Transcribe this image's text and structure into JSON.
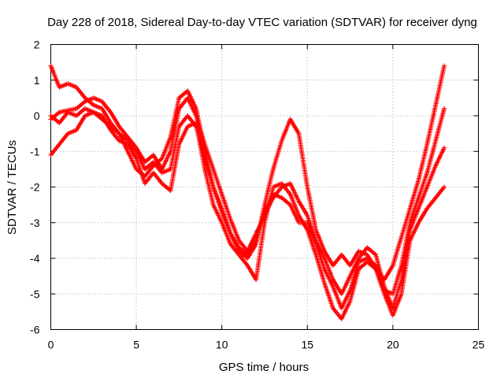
{
  "chart_data": {
    "type": "scatter",
    "title": "Day 228 of 2018, Sidereal Day-to-day VTEC variation (SDTVAR) for receiver dyng",
    "xlabel": "GPS time / hours",
    "ylabel": "SDTVAR / TECUs",
    "xlim": [
      0,
      25
    ],
    "ylim": [
      -6,
      2
    ],
    "xticks": [
      "0",
      "5",
      "10",
      "15",
      "20",
      "25"
    ],
    "yticks": [
      "-6",
      "-5",
      "-4",
      "-3",
      "-2",
      "-1",
      "0",
      "1",
      "2"
    ],
    "grid": true,
    "marker": "+",
    "color": "#ff0000",
    "series": [
      {
        "x": [
          0.0,
          0.5,
          1.0,
          1.5,
          2.0,
          2.5,
          3.0,
          3.5,
          4.0,
          4.5,
          5.0,
          5.5,
          6.0,
          6.5,
          7.0,
          7.5,
          8.0,
          8.5,
          9.0,
          9.5,
          10.0,
          10.5,
          11.0,
          11.5,
          12.0,
          12.5,
          13.0,
          13.5,
          14.0,
          14.5,
          15.0,
          15.5,
          16.0,
          16.5,
          17.0,
          17.5,
          18.0,
          18.5,
          19.0,
          19.5,
          20.0,
          20.5,
          21.0,
          21.5,
          22.0,
          22.5,
          23.0
        ],
        "y": [
          1.4,
          0.8,
          0.9,
          0.8,
          0.5,
          0.3,
          0.2,
          -0.2,
          -0.5,
          -1.0,
          -1.5,
          -1.7,
          -1.4,
          -1.2,
          -0.6,
          0.5,
          0.7,
          0.2,
          -1.0,
          -2.0,
          -2.6,
          -3.3,
          -3.8,
          -4.0,
          -3.6,
          -2.5,
          -1.5,
          -0.7,
          -0.1,
          -0.5,
          -2.0,
          -3.2,
          -3.8,
          -4.2,
          -3.9,
          -4.2,
          -3.8,
          -3.9,
          -4.3,
          -4.6,
          -4.2,
          -3.4,
          -2.6,
          -1.8,
          -0.8,
          0.3,
          1.4
        ]
      },
      {
        "x": [
          0.0,
          0.5,
          1.0,
          1.5,
          2.0,
          2.5,
          3.0,
          3.5,
          4.0,
          4.5,
          5.0,
          5.5,
          6.0,
          6.5,
          7.0,
          7.5,
          8.0,
          8.5,
          9.0,
          9.5,
          10.0,
          10.5,
          11.0,
          11.5,
          12.0,
          12.5,
          13.0,
          13.5,
          14.0,
          14.5,
          15.0,
          15.5,
          16.0,
          16.5,
          17.0,
          17.5,
          18.0,
          18.5,
          19.0,
          19.5,
          20.0,
          20.5,
          21.0,
          21.5,
          22.0,
          22.5,
          23.0
        ],
        "y": [
          -0.1,
          0.1,
          0.15,
          0.2,
          0.4,
          0.5,
          0.4,
          0.1,
          -0.3,
          -0.6,
          -0.9,
          -1.3,
          -1.1,
          -1.5,
          -1.0,
          0.2,
          0.5,
          0.0,
          -0.8,
          -1.5,
          -2.2,
          -2.9,
          -3.5,
          -3.8,
          -3.3,
          -2.8,
          -2.3,
          -2.0,
          -1.9,
          -2.4,
          -2.8,
          -3.5,
          -4.0,
          -4.6,
          -5.0,
          -4.5,
          -4.0,
          -3.7,
          -3.9,
          -4.8,
          -5.4,
          -4.6,
          -3.2,
          -2.6,
          -2.0,
          -1.4,
          -0.9
        ]
      },
      {
        "x": [
          0.0,
          0.5,
          1.0,
          1.5,
          2.0,
          2.5,
          3.0,
          3.5,
          4.0,
          4.5,
          5.0,
          5.5,
          6.0,
          6.5,
          7.0,
          7.5,
          8.0,
          8.5,
          9.0,
          9.5,
          10.0,
          10.5,
          11.0,
          11.5,
          12.0,
          12.5,
          13.0,
          13.5,
          14.0,
          14.5,
          15.0,
          15.5,
          16.0,
          16.5,
          17.0,
          17.5,
          18.0,
          18.5,
          19.0,
          19.5,
          20.0,
          20.5,
          21.0,
          21.5,
          22.0,
          22.5,
          23.0
        ],
        "y": [
          -1.1,
          -0.8,
          -0.5,
          -0.4,
          0.0,
          0.1,
          0.0,
          -0.4,
          -0.7,
          -0.8,
          -1.2,
          -1.9,
          -1.6,
          -1.9,
          -2.1,
          -0.8,
          -0.3,
          -0.2,
          -1.5,
          -2.5,
          -3.0,
          -3.6,
          -3.9,
          -4.2,
          -4.6,
          -3.0,
          -2.0,
          -1.9,
          -2.2,
          -2.8,
          -3.2,
          -3.9,
          -4.7,
          -5.4,
          -5.7,
          -5.2,
          -4.3,
          -4.1,
          -4.3,
          -5.0,
          -5.6,
          -5.0,
          -3.5,
          -3.0,
          -2.6,
          -2.3,
          -2.0
        ]
      },
      {
        "x": [
          0.0,
          0.5,
          1.0,
          1.5,
          2.0,
          2.5,
          3.0,
          3.5,
          4.0,
          4.5,
          5.0,
          5.5,
          6.0,
          6.5,
          7.0,
          7.5,
          8.0,
          8.5,
          9.0,
          9.5,
          10.0,
          10.5,
          11.0,
          11.5,
          12.0,
          12.5,
          13.0,
          13.5,
          14.0,
          14.5,
          15.0,
          15.5,
          16.0,
          16.5,
          17.0,
          17.5,
          18.0,
          18.5,
          19.0,
          19.5,
          20.0,
          20.5,
          21.0,
          21.5,
          22.0,
          22.5,
          23.0
        ],
        "y": [
          0.0,
          -0.2,
          0.1,
          0.0,
          0.2,
          0.1,
          -0.1,
          -0.3,
          -0.5,
          -0.7,
          -1.0,
          -1.5,
          -1.3,
          -1.6,
          -1.5,
          -0.3,
          0.0,
          -0.3,
          -1.2,
          -2.0,
          -2.7,
          -3.3,
          -3.7,
          -3.9,
          -3.5,
          -2.7,
          -2.2,
          -2.3,
          -2.5,
          -3.0,
          -3.0,
          -3.6,
          -4.3,
          -4.8,
          -5.4,
          -4.9,
          -4.1,
          -4.0,
          -4.2,
          -4.9,
          -5.0,
          -4.2,
          -3.0,
          -2.3,
          -1.6,
          -0.7,
          0.2
        ]
      }
    ]
  }
}
